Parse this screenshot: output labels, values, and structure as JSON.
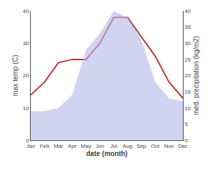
{
  "chart_data": {
    "type": "line",
    "categories": [
      "Jan",
      "Feb",
      "Mar",
      "Apr",
      "May",
      "Jun",
      "Jul",
      "Aug",
      "Sep",
      "Oct",
      "Nov",
      "Dec"
    ],
    "xlabel": "date (month)",
    "ylabel": "max temp (C)",
    "y2label": "med. precipitation (kg/m2)",
    "series": [
      {
        "type": "area",
        "axis": "y2",
        "color": "#b0b8e8",
        "values": [
          9,
          9,
          10,
          14,
          28,
          33,
          40,
          38,
          31,
          18,
          13,
          12
        ]
      },
      {
        "type": "line",
        "color": "#c03030",
        "values": [
          14,
          18,
          24,
          25,
          25,
          30,
          38,
          38,
          32,
          26,
          18,
          13
        ]
      }
    ],
    "ylim": [
      0,
      40
    ],
    "yticks": [
      0,
      10,
      20,
      30,
      40
    ],
    "y2lim": [
      0,
      40
    ],
    "y2ticks": [
      0,
      5,
      10,
      15,
      20,
      25,
      30,
      35,
      40
    ],
    "grid": false
  }
}
